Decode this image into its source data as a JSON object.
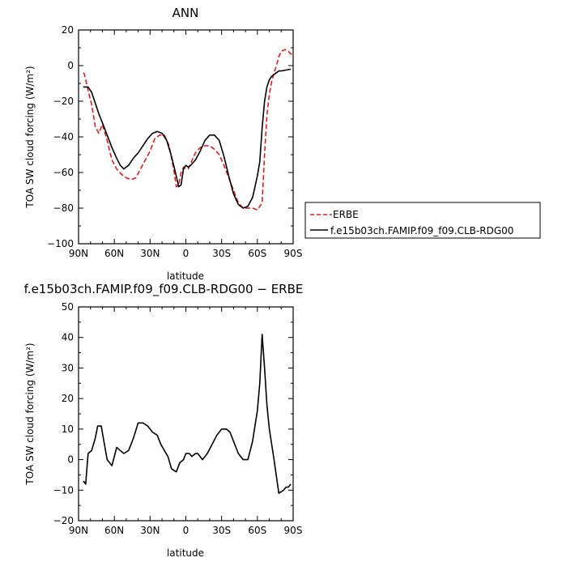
{
  "chart_data": [
    {
      "type": "line",
      "title": "ANN",
      "xlabel": "latitude",
      "ylabel": "TOA SW cloud forcing (W/m²)",
      "xlim": [
        90,
        -90
      ],
      "ylim": [
        -100,
        20
      ],
      "x_tick_values": [
        90,
        60,
        30,
        0,
        -30,
        -60,
        -90
      ],
      "x_tick_labels": [
        "90N",
        "60N",
        "30N",
        "0",
        "30S",
        "60S",
        "90S"
      ],
      "y_tick_values": [
        20,
        0,
        -20,
        -40,
        -60,
        -80,
        -100
      ],
      "y_tick_labels": [
        "20",
        "0",
        "−20",
        "−40",
        "−60",
        "−80",
        "−100"
      ],
      "legend": {
        "placement": "right"
      },
      "series": [
        {
          "name": "ERBE",
          "color": "#e41a1c",
          "style": "dashed",
          "x": [
            86,
            85,
            82,
            79,
            76,
            73,
            70,
            66,
            62,
            58,
            54,
            50,
            46,
            42,
            38,
            34,
            30,
            26,
            22,
            18,
            14,
            10,
            8,
            6,
            4,
            2,
            0,
            -2,
            -4,
            -8,
            -12,
            -16,
            -20,
            -24,
            -28,
            -32,
            -36,
            -40,
            -44,
            -48,
            -52,
            -56,
            -60,
            -62,
            -64,
            -66,
            -68,
            -70,
            -72,
            -74,
            -76,
            -78,
            -80,
            -83,
            -86,
            -89
          ],
          "values": [
            -4,
            -5,
            -14,
            -22,
            -34,
            -38,
            -33,
            -42,
            -53,
            -58,
            -61,
            -63,
            -64,
            -63,
            -58,
            -53,
            -48,
            -41,
            -39,
            -39,
            -45,
            -59,
            -68,
            -67,
            -60,
            -57,
            -58,
            -58,
            -55,
            -49,
            -46,
            -45,
            -45,
            -47,
            -50,
            -56,
            -63,
            -70,
            -77,
            -80,
            -80,
            -80,
            -81,
            -79,
            -77,
            -50,
            -28,
            -16,
            -9,
            -4,
            0,
            5,
            8,
            9,
            8,
            6
          ]
        },
        {
          "name": "f.e15b03ch.FAMIP.f09_f09.CLB-RDG00",
          "color": "#000000",
          "style": "solid",
          "x": [
            86,
            82,
            79,
            76,
            73,
            70,
            66,
            62,
            58,
            55,
            52,
            48,
            44,
            40,
            36,
            32,
            28,
            24,
            20,
            16,
            12,
            8,
            6,
            4,
            2,
            0,
            -2,
            -4,
            -8,
            -12,
            -16,
            -20,
            -24,
            -28,
            -32,
            -36,
            -40,
            -44,
            -48,
            -52,
            -56,
            -60,
            -62,
            -64,
            -66,
            -68,
            -70,
            -72,
            -74,
            -76,
            -78,
            -80,
            -84,
            -88
          ],
          "values": [
            -12,
            -12,
            -15,
            -21,
            -27,
            -32,
            -39,
            -46,
            -52,
            -56,
            -58,
            -56,
            -52,
            -49,
            -45,
            -41,
            -38,
            -37,
            -38,
            -42,
            -51,
            -62,
            -68,
            -67,
            -58,
            -56,
            -57,
            -56,
            -53,
            -48,
            -42,
            -39,
            -39,
            -42,
            -51,
            -62,
            -72,
            -78,
            -80,
            -79,
            -74,
            -62,
            -54,
            -35,
            -20,
            -12,
            -8,
            -6,
            -5,
            -4,
            -3,
            -3,
            -2.5,
            -2
          ]
        }
      ]
    },
    {
      "type": "line",
      "title": "f.e15b03ch.FAMIP.f09_f09.CLB-RDG00 − ERBE",
      "xlabel": "latitude",
      "ylabel": "TOA SW cloud forcing (W/m²)",
      "xlim": [
        90,
        -90
      ],
      "ylim": [
        -20,
        50
      ],
      "x_tick_values": [
        90,
        60,
        30,
        0,
        -30,
        -60,
        -90
      ],
      "x_tick_labels": [
        "90N",
        "60N",
        "30N",
        "0",
        "30S",
        "60S",
        "90S"
      ],
      "y_tick_values": [
        50,
        40,
        30,
        20,
        10,
        0,
        -10,
        -20
      ],
      "y_tick_labels": [
        "50",
        "40",
        "30",
        "20",
        "10",
        "0",
        "−10",
        "−20"
      ],
      "series": [
        {
          "color": "#000000",
          "style": "solid",
          "x": [
            86,
            84,
            82,
            79,
            76,
            74,
            71,
            66,
            64,
            62,
            58,
            55,
            52,
            48,
            44,
            40,
            36,
            32,
            28,
            24,
            21,
            18,
            15,
            12,
            8,
            5,
            2,
            0,
            -3,
            -5,
            -8,
            -10,
            -14,
            -18,
            -22,
            -26,
            -30,
            -34,
            -37,
            -40,
            -44,
            -48,
            -52,
            -56,
            -60,
            -62,
            -64,
            -66,
            -68,
            -70,
            -74,
            -78,
            -82,
            -84,
            -86,
            -88
          ],
          "values": [
            -7,
            -8,
            2,
            3,
            7,
            11,
            11,
            0,
            -1,
            -2,
            4,
            3,
            2,
            3,
            7,
            12,
            12,
            11,
            9,
            8,
            5,
            3,
            1,
            -3,
            -4,
            -1,
            0,
            2,
            2,
            1,
            2,
            2,
            0,
            2,
            5,
            8,
            10,
            10,
            9,
            6,
            2,
            0,
            0,
            6,
            16,
            25,
            41,
            30,
            18,
            10,
            0,
            -11,
            -10,
            -9,
            -9,
            -8
          ]
        }
      ]
    }
  ]
}
